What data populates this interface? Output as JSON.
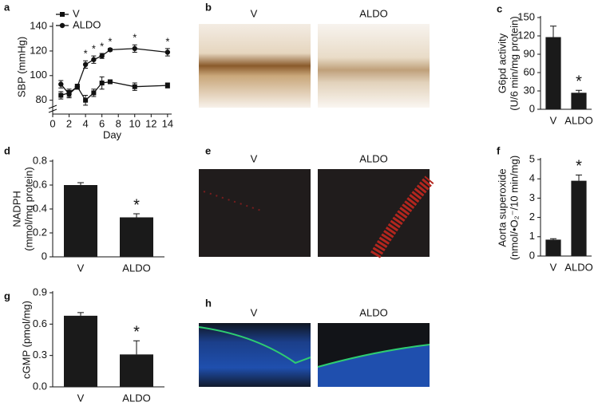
{
  "chart_data": [
    {
      "type": "line",
      "panel": "a",
      "xlabel": "Day",
      "ylabel": "SBP (mmHg)",
      "xlim": [
        0,
        14.5
      ],
      "xticks": [
        0,
        2,
        4,
        6,
        8,
        10,
        12,
        14
      ],
      "ylim": [
        72,
        142
      ],
      "yticks": [
        80,
        100,
        120,
        140
      ],
      "x": [
        1,
        2,
        3,
        4,
        5,
        6,
        7,
        10,
        14
      ],
      "series": [
        {
          "name": "V",
          "color": "#111",
          "marker": "square",
          "values": [
            84,
            86,
            91,
            80,
            86,
            94,
            95,
            91,
            92
          ],
          "errors": [
            3,
            3,
            2,
            4,
            3,
            5,
            1,
            3,
            2
          ]
        },
        {
          "name": "ALDO",
          "color": "#111",
          "marker": "circle",
          "values": [
            93,
            85,
            91,
            109,
            113,
            116,
            121,
            122,
            119
          ],
          "errors": [
            3,
            3,
            2,
            3,
            3,
            2,
            1,
            3,
            3
          ]
        }
      ],
      "annotations": [
        {
          "text": "*",
          "x": 4
        },
        {
          "text": "*",
          "x": 5
        },
        {
          "text": "*",
          "x": 6
        },
        {
          "text": "*",
          "x": 7
        },
        {
          "text": "*",
          "x": 10
        },
        {
          "text": "*",
          "x": 14
        }
      ]
    },
    {
      "type": "bar",
      "panel": "c",
      "ylabel": [
        "G6pd activity",
        "(U/6 min/mg protein)"
      ],
      "categories": [
        "V",
        "ALDO"
      ],
      "values": [
        118,
        27
      ],
      "errors": [
        18,
        4
      ],
      "color": "#1a1a1a",
      "ylim": [
        0,
        150
      ],
      "yticks": [
        0,
        30,
        60,
        90,
        120,
        150
      ],
      "annotations": [
        {
          "text": "*",
          "category": 1
        }
      ]
    },
    {
      "type": "bar",
      "panel": "d",
      "ylabel": [
        "NADPH",
        "(mmol/mg protein)"
      ],
      "categories": [
        "V",
        "ALDO"
      ],
      "values": [
        0.6,
        0.33
      ],
      "errors": [
        0.02,
        0.03
      ],
      "color": "#1a1a1a",
      "ylim": [
        0,
        0.8
      ],
      "yticks": [
        0,
        0.2,
        0.4,
        0.6,
        0.8
      ],
      "annotations": [
        {
          "text": "*",
          "category": 1
        }
      ]
    },
    {
      "type": "bar",
      "panel": "f",
      "ylabel": [
        "Aorta superoxide",
        "(nmol/•O₂⁻/10 min/mg)"
      ],
      "categories": [
        "V",
        "ALDO"
      ],
      "values": [
        0.85,
        3.9
      ],
      "errors": [
        0.05,
        0.3
      ],
      "color": "#1a1a1a",
      "ylim": [
        0,
        5
      ],
      "yticks": [
        0,
        1,
        2,
        3,
        4,
        5
      ],
      "annotations": [
        {
          "text": "*",
          "category": 1
        }
      ]
    },
    {
      "type": "bar",
      "panel": "g",
      "ylabel": [
        "cGMP (pmol/mg)"
      ],
      "categories": [
        "V",
        "ALDO"
      ],
      "values": [
        0.68,
        0.31
      ],
      "errors": [
        0.03,
        0.13
      ],
      "color": "#1a1a1a",
      "ylim": [
        0,
        0.9
      ],
      "yticks": [
        {
          "value": 0,
          "label": "0.0"
        },
        0.3,
        0.6,
        0.9
      ],
      "annotations": [
        {
          "text": "*",
          "category": 1
        }
      ]
    }
  ],
  "image_panels": [
    {
      "panel": "b",
      "labels": [
        "V",
        "ALDO"
      ]
    },
    {
      "panel": "e",
      "labels": [
        "V",
        "ALDO"
      ]
    },
    {
      "panel": "h",
      "labels": [
        "V",
        "ALDO"
      ]
    }
  ]
}
